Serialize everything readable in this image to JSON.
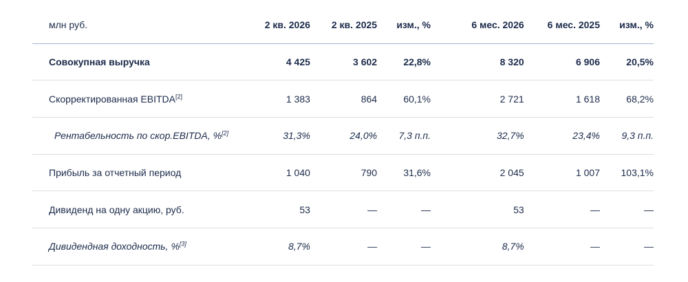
{
  "header": {
    "unit": "млн руб.",
    "columns": [
      "2 кв. 2026",
      "2 кв. 2025",
      "изм., %",
      "6 мес. 2026",
      "6 мес. 2025",
      "изм., %"
    ]
  },
  "rows": [
    {
      "label": "Совокупная выручка",
      "note": "",
      "values": [
        "4 425",
        "3 602",
        "22,8%",
        "8 320",
        "6 906",
        "20,5%"
      ]
    },
    {
      "label": "Скорректированная EBITDA",
      "note": "[2]",
      "values": [
        "1 383",
        "864",
        "60,1%",
        "2 721",
        "1 618",
        "68,2%"
      ]
    },
    {
      "label": "Рентабельность по скор.EBITDA, %",
      "note": "[2]",
      "values": [
        "31,3%",
        "24,0%",
        "7,3 п.п.",
        "32,7%",
        "23,4%",
        "9,3 п.п."
      ]
    },
    {
      "label": "Прибыль за отчетный период",
      "note": "",
      "values": [
        "1 040",
        "790",
        "31,6%",
        "2 045",
        "1 007",
        "103,1%"
      ]
    },
    {
      "label": "Дивиденд на одну акцию, руб.",
      "note": "",
      "values": [
        "53",
        "—",
        "—",
        "53",
        "—",
        "—"
      ]
    },
    {
      "label": "Дивидендная доходность, %",
      "note": "[3]",
      "values": [
        "8,7%",
        "—",
        "—",
        "8,7%",
        "—",
        "—"
      ]
    }
  ]
}
